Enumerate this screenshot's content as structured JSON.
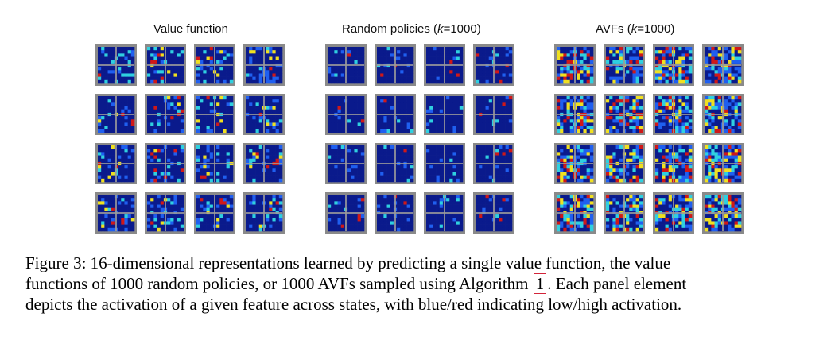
{
  "figure": {
    "groups": [
      {
        "id": "vf",
        "title": "Value function",
        "title_math": ""
      },
      {
        "id": "rp",
        "title": "Random policies (",
        "title_math": "k",
        "title_tail": "=1000)"
      },
      {
        "id": "avf",
        "title": "AVFs (",
        "title_math": "k",
        "title_tail": "=1000)"
      }
    ],
    "rows": 4,
    "cols": 4,
    "colors": {
      "low": "#0a1a8c",
      "mid_low": "#1f5ff0",
      "mid": "#2fd0e0",
      "mid_high": "#f0e020",
      "high": "#d01818",
      "frame": "#8a8a8a",
      "wall": "#9a9a9a"
    }
  },
  "caption": {
    "line1": "Figure 3: 16-dimensional representations learned by predicting a single value function, the value",
    "line2_pre": "functions of 1000 random policies, or 1000 AVFs sampled using Algorithm",
    "line2_ref": "1",
    "line2_post": ". Each panel element",
    "line3": "depicts the activation of a given feature across states, with blue/red indicating low/high activation."
  }
}
